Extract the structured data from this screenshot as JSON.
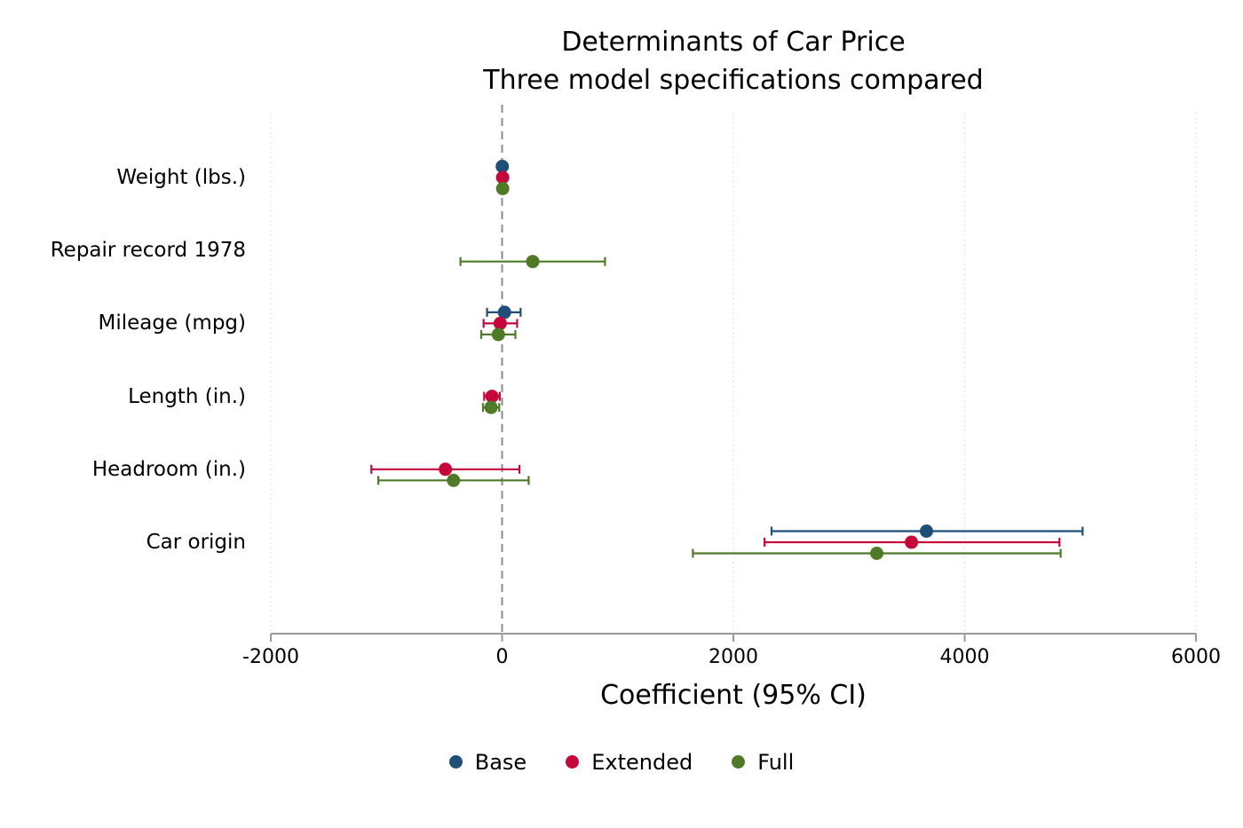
{
  "chart_data": {
    "type": "coefficient-plot",
    "title": "Determinants of Car Price",
    "subtitle": "Three model specifications compared",
    "xlabel": "Coefficient (95% CI)",
    "xlim": [
      -2000,
      6000
    ],
    "xticks": [
      -2000,
      0,
      2000,
      4000,
      6000
    ],
    "xtick_labels": [
      "-2000",
      "0",
      "2000",
      "4000",
      "6000"
    ],
    "reference_line": 0,
    "grid": "vertical dotted",
    "legend_position": "bottom",
    "categories": [
      "Weight (lbs.)",
      "Repair record 1978",
      "Mileage (mpg)",
      "Length (in.)",
      "Headroom (in.)",
      "Car origin"
    ],
    "series": [
      {
        "name": "Base",
        "color": "#1f4e79",
        "points": [
          {
            "category": "Weight (lbs.)",
            "estimate": 1.7,
            "lower": 1.0,
            "upper": 2.4
          },
          {
            "category": "Mileage (mpg)",
            "estimate": 21,
            "lower": -130,
            "upper": 160
          },
          {
            "category": "Car origin",
            "estimate": 3670,
            "lower": 2330,
            "upper": 5020
          }
        ]
      },
      {
        "name": "Extended",
        "color": "#c5073a",
        "points": [
          {
            "category": "Weight (lbs.)",
            "estimate": 4.9,
            "lower": 3.2,
            "upper": 6.6
          },
          {
            "category": "Mileage (mpg)",
            "estimate": -16,
            "lower": -160,
            "upper": 130
          },
          {
            "category": "Length (in.)",
            "estimate": -87,
            "lower": -155,
            "upper": -20
          },
          {
            "category": "Headroom (in.)",
            "estimate": -490,
            "lower": -1130,
            "upper": 150
          },
          {
            "category": "Car origin",
            "estimate": 3540,
            "lower": 2270,
            "upper": 4820
          }
        ]
      },
      {
        "name": "Full",
        "color": "#4f7a28",
        "points": [
          {
            "category": "Weight (lbs.)",
            "estimate": 5.2,
            "lower": 3.5,
            "upper": 6.9
          },
          {
            "category": "Repair record 1978",
            "estimate": 265,
            "lower": -360,
            "upper": 890
          },
          {
            "category": "Mileage (mpg)",
            "estimate": -32,
            "lower": -180,
            "upper": 115
          },
          {
            "category": "Length (in.)",
            "estimate": -95,
            "lower": -165,
            "upper": -25
          },
          {
            "category": "Headroom (in.)",
            "estimate": -420,
            "lower": -1070,
            "upper": 230
          },
          {
            "category": "Car origin",
            "estimate": 3240,
            "lower": 1650,
            "upper": 4830
          }
        ]
      }
    ]
  }
}
